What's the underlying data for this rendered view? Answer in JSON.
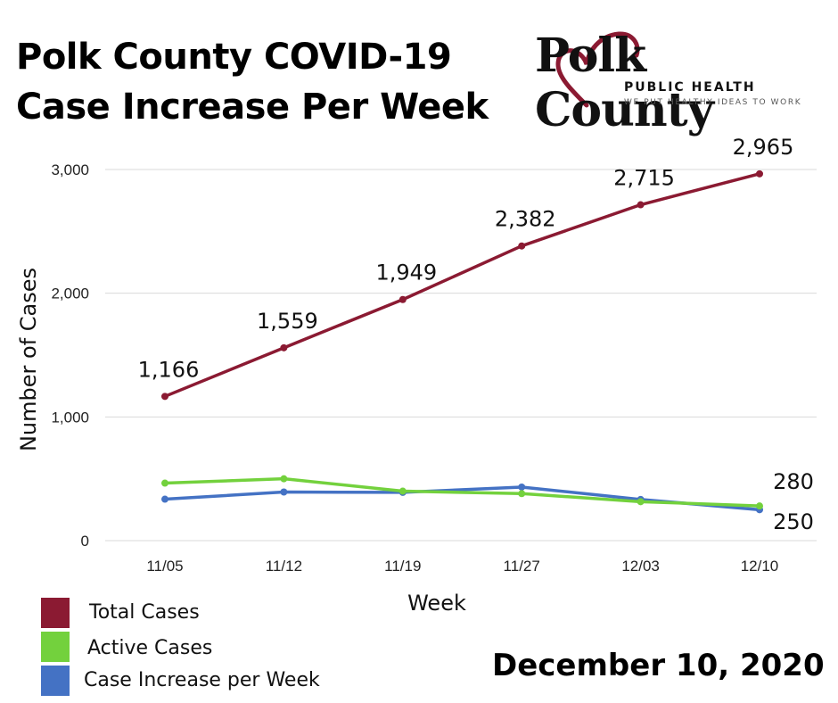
{
  "header": {
    "title_line1": "Polk County COVID-19",
    "title_line2": "Case Increase Per Week"
  },
  "logo": {
    "wordmark": "Polk County",
    "subtitle": "PUBLIC HEALTH",
    "tagline": "WE PUT HEALTHY IDEAS TO WORK"
  },
  "footer": {
    "date": "December 10, 2020"
  },
  "colors": {
    "total": "#8b1a32",
    "active": "#73d13d",
    "increase": "#4472c4",
    "grid": "#d9d9d9"
  },
  "chart_data": {
    "type": "line",
    "title": "Polk County COVID-19 Case Increase Per Week",
    "xlabel": "Week",
    "ylabel": "Number of Cases",
    "categories": [
      "11/05",
      "11/12",
      "11/19",
      "11/27",
      "12/03",
      "12/10"
    ],
    "ylim": [
      0,
      3000
    ],
    "yticks": [
      0,
      1000,
      2000,
      3000
    ],
    "ytick_labels": [
      "0",
      "1,000",
      "2,000",
      "3,000"
    ],
    "grid": true,
    "legend": "bottom-left",
    "series": [
      {
        "name": "Total Cases",
        "values": [
          1166,
          1559,
          1949,
          2382,
          2715,
          2965
        ],
        "labels": [
          "1,166",
          "1,559",
          "1,949",
          "2,382",
          "2,715",
          "2,965"
        ]
      },
      {
        "name": "Active Cases",
        "values": [
          465,
          500,
          400,
          380,
          315,
          280
        ],
        "labels": [
          "",
          "",
          "",
          "",
          "",
          "280"
        ]
      },
      {
        "name": "Case Increase per Week",
        "values": [
          335,
          393,
          390,
          433,
          333,
          250
        ],
        "labels": [
          "",
          "",
          "",
          "",
          "",
          "250"
        ]
      }
    ]
  }
}
